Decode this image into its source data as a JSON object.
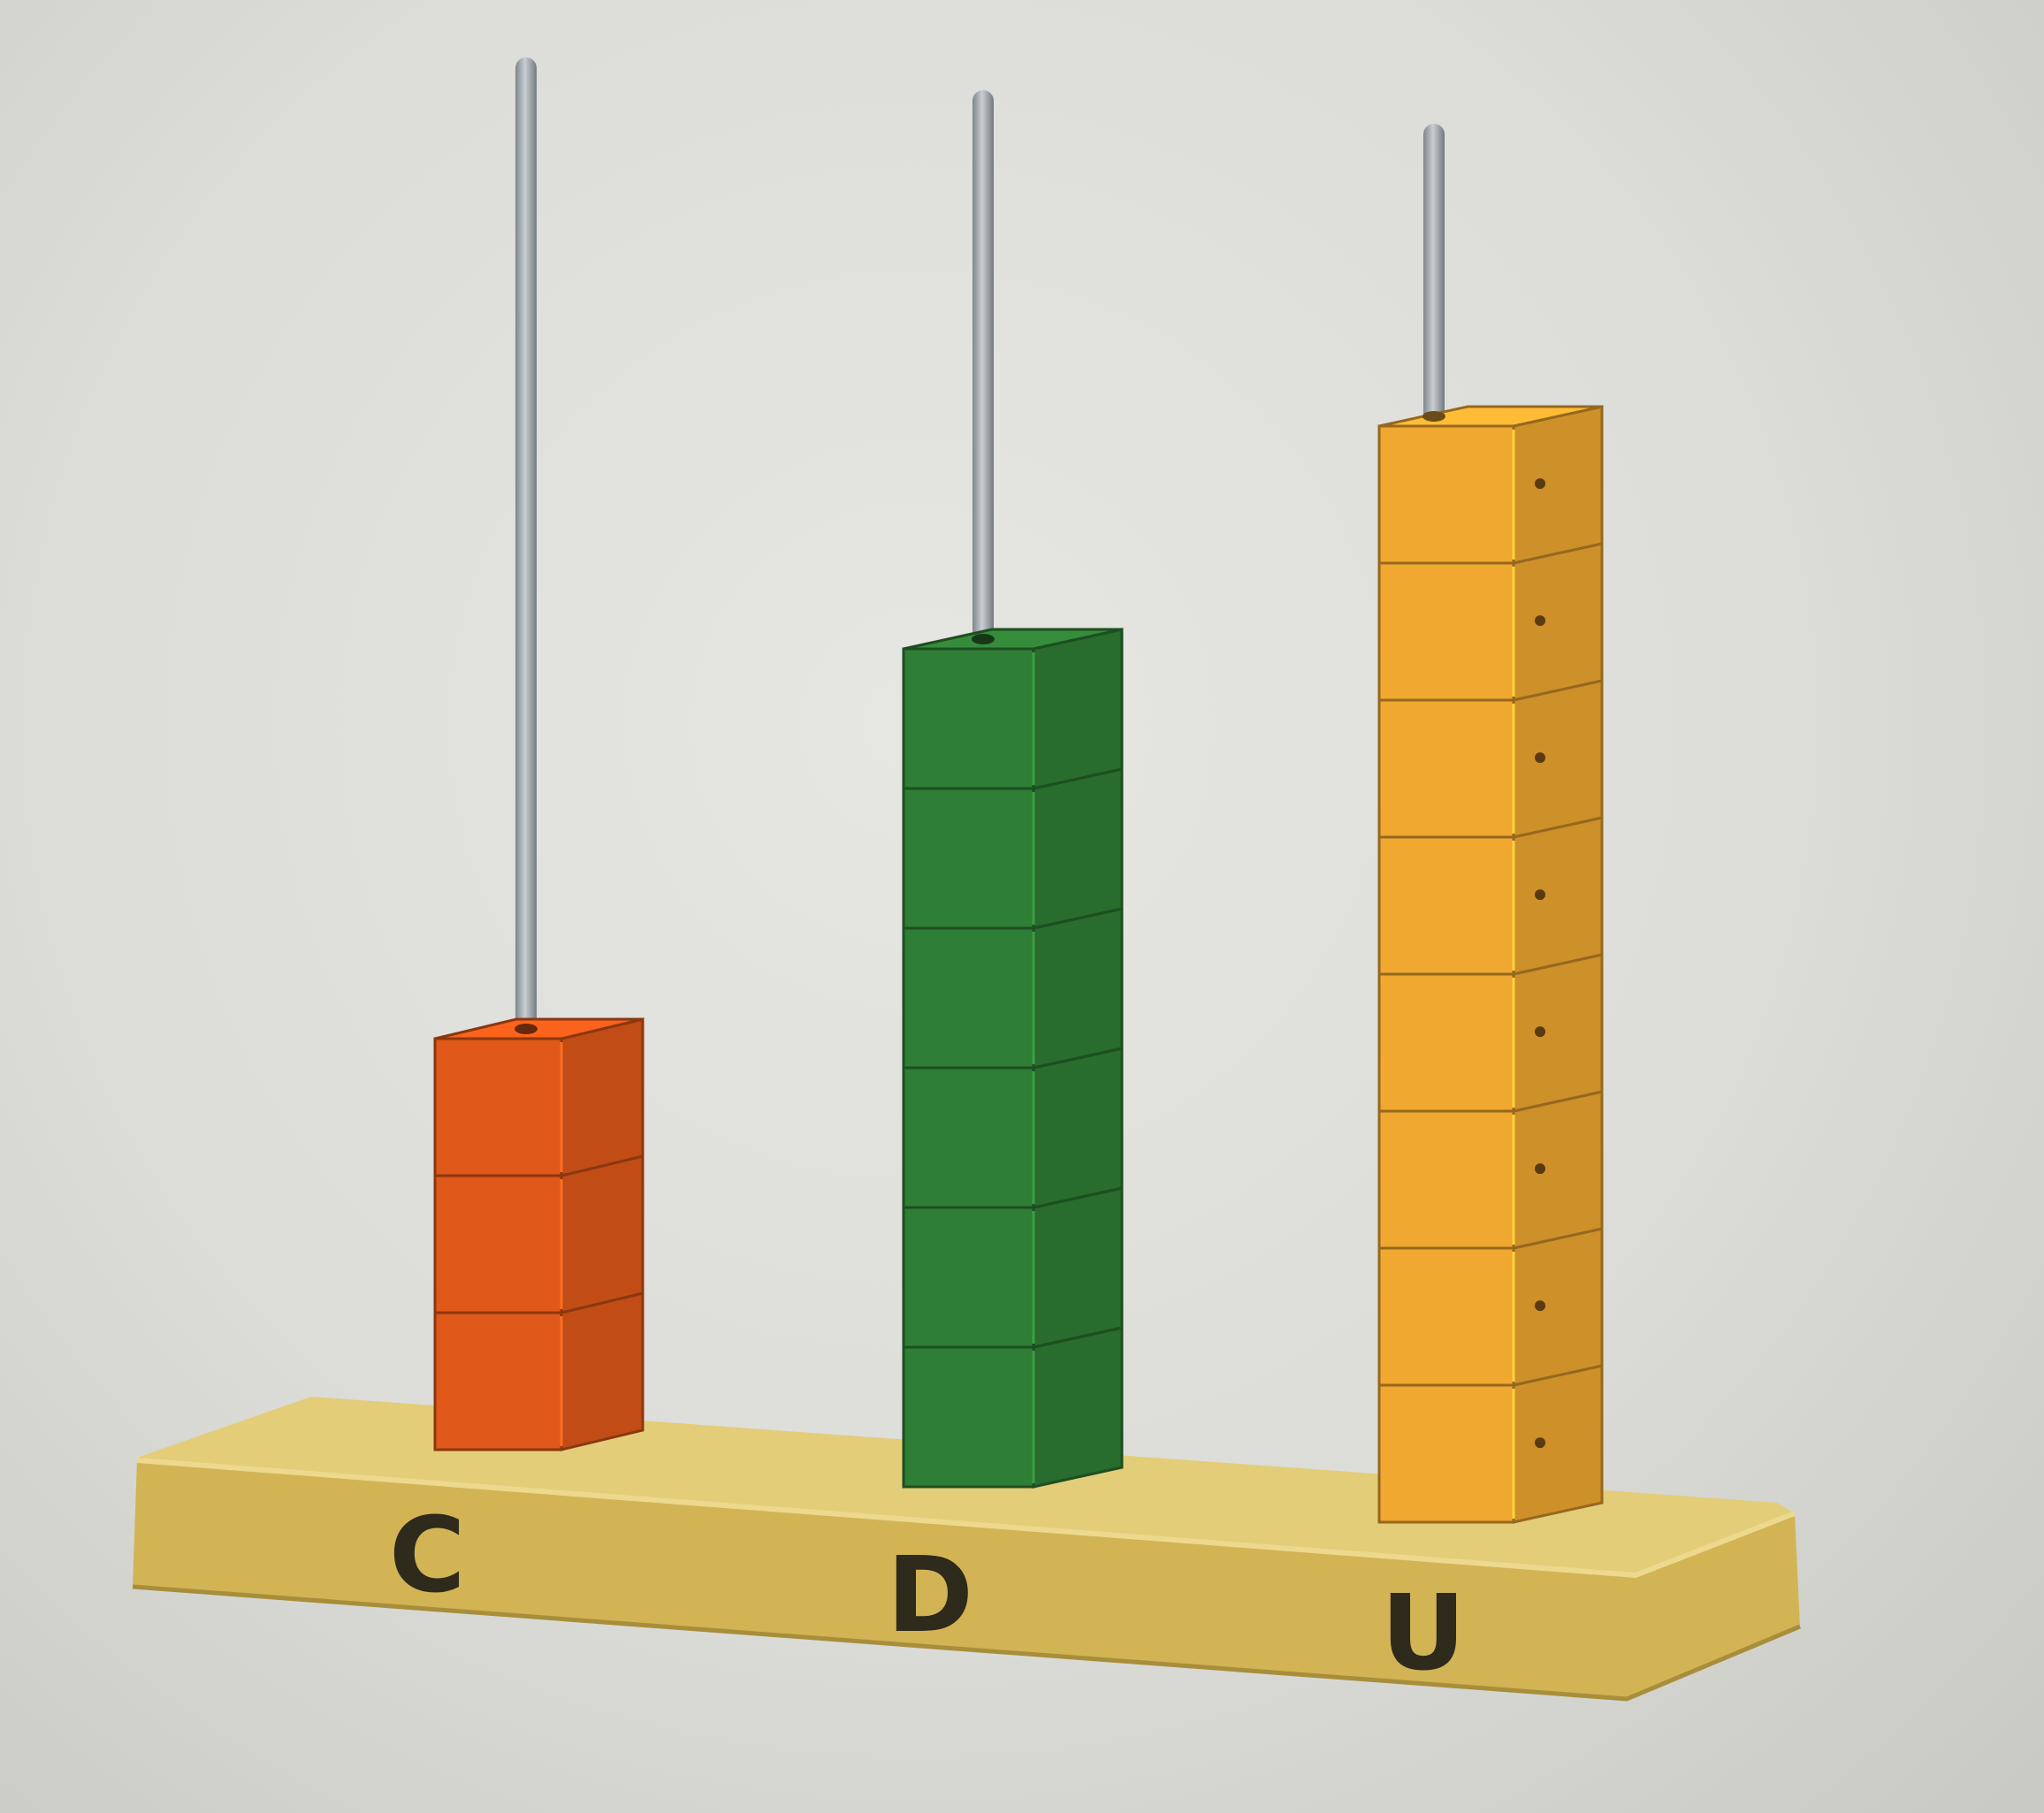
{
  "abacus": {
    "base_color": "#d4b85a",
    "rod_color": "#9aa2a8",
    "columns": [
      {
        "label": "C",
        "beads": 3,
        "color": "#e0581a"
      },
      {
        "label": "D",
        "beads": 6,
        "color": "#2f7e36"
      },
      {
        "label": "U",
        "beads": 8,
        "color": "#f0a830"
      }
    ]
  }
}
